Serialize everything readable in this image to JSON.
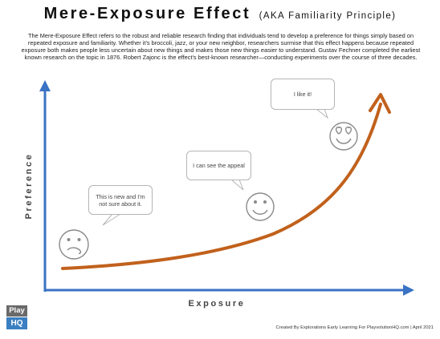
{
  "title": "Mere-Exposure Effect",
  "subtitle": "(AKA Familiarity Principle)",
  "description": "The Mere-Exposure Effect refers to the robust and reliable research finding that individuals tend to develop a preference for things simply based on repeated exposure and familiarity. Whether it's broccoli, jazz, or your new neighbor, researchers surmise that this effect happens because repeated exposure both makes people less uncertain about new things and makes those new things easier to understand. Gustav Fechner completed the earliest known research on the topic in 1876. Robert Zajonc is the effect's best-known researcher—conducting experiments over the course of three decades.",
  "axes": {
    "x_label": "Exposure",
    "y_label": "Preference"
  },
  "stages": [
    {
      "face": "confused-face",
      "speech": "This is new and I'm not sure about it."
    },
    {
      "face": "smiling-face",
      "speech": "I can see the appeal"
    },
    {
      "face": "heart-eyes-face",
      "speech": "I like it!"
    }
  ],
  "colors": {
    "axis": "#3a73c4",
    "curve": "#c1611c",
    "bubble_border": "#b5b5b5",
    "face_stroke": "#8a8a8a"
  },
  "logo": {
    "line1": "Play",
    "line2": "HQ"
  },
  "credit": "Created By Explorations Early Learning For PlayvolutionHQ.com | April 2021"
}
